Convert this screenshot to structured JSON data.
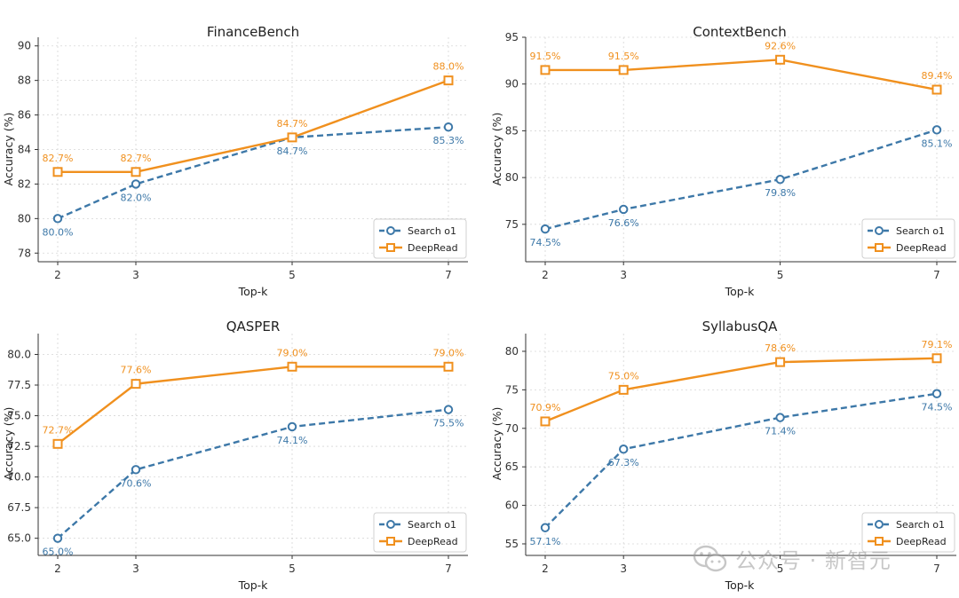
{
  "chart_data": [
    {
      "type": "line",
      "title": "FinanceBench",
      "xlabel": "Top-k",
      "ylabel": "Accuracy (%)",
      "x": [
        2,
        3,
        5,
        7
      ],
      "xticks": [
        "2",
        "3",
        "5",
        "7"
      ],
      "ylim": [
        77.5,
        90.5
      ],
      "yticks": [
        78,
        80,
        82,
        84,
        86,
        88,
        90
      ],
      "ytick_labels": [
        "78",
        "80",
        "82",
        "84",
        "86",
        "88",
        "90"
      ],
      "legend_position": "lower-right",
      "grid": true,
      "series": [
        {
          "name": "Search o1",
          "values": [
            80.0,
            82.0,
            84.7,
            85.3
          ],
          "labels": [
            "80.0%",
            "82.0%",
            "84.7%",
            "85.3%"
          ],
          "label_position": "below",
          "color": "#3d78a8",
          "style": "dashed",
          "marker": "circle"
        },
        {
          "name": "DeepRead",
          "values": [
            82.7,
            82.7,
            84.7,
            88.0
          ],
          "labels": [
            "82.7%",
            "82.7%",
            "84.7%",
            "88.0%"
          ],
          "label_position": "above",
          "color": "#f0901e",
          "style": "solid",
          "marker": "square"
        }
      ]
    },
    {
      "type": "line",
      "title": "ContextBench",
      "xlabel": "Top-k",
      "ylabel": "Accuracy (%)",
      "x": [
        2,
        3,
        5,
        7
      ],
      "xticks": [
        "2",
        "3",
        "5",
        "7"
      ],
      "ylim": [
        71.0,
        95.0
      ],
      "yticks": [
        75,
        80,
        85,
        90,
        95
      ],
      "ytick_labels": [
        "75",
        "80",
        "85",
        "90",
        "95"
      ],
      "legend_position": "lower-right",
      "grid": true,
      "series": [
        {
          "name": "Search o1",
          "values": [
            74.5,
            76.6,
            79.8,
            85.1
          ],
          "labels": [
            "74.5%",
            "76.6%",
            "79.8%",
            "85.1%"
          ],
          "label_position": "below",
          "color": "#3d78a8",
          "style": "dashed",
          "marker": "circle"
        },
        {
          "name": "DeepRead",
          "values": [
            91.5,
            91.5,
            92.6,
            89.4
          ],
          "labels": [
            "91.5%",
            "91.5%",
            "92.6%",
            "89.4%"
          ],
          "label_position": "above",
          "color": "#f0901e",
          "style": "solid",
          "marker": "square"
        }
      ]
    },
    {
      "type": "line",
      "title": "QASPER",
      "xlabel": "Top-k",
      "ylabel": "Accuracy (%)",
      "x": [
        2,
        3,
        5,
        7
      ],
      "xticks": [
        "2",
        "3",
        "5",
        "7"
      ],
      "ylim": [
        63.6,
        81.7
      ],
      "yticks": [
        65.0,
        67.5,
        70.0,
        72.5,
        75.0,
        77.5,
        80.0
      ],
      "ytick_labels": [
        "65.0",
        "67.5",
        "70.0",
        "72.5",
        "75.0",
        "77.5",
        "80.0"
      ],
      "legend_position": "lower-right",
      "grid": true,
      "series": [
        {
          "name": "Search o1",
          "values": [
            65.0,
            70.6,
            74.1,
            75.5
          ],
          "labels": [
            "65.0%",
            "70.6%",
            "74.1%",
            "75.5%"
          ],
          "label_position": "below",
          "color": "#3d78a8",
          "style": "dashed",
          "marker": "circle"
        },
        {
          "name": "DeepRead",
          "values": [
            72.7,
            77.6,
            79.0,
            79.0
          ],
          "labels": [
            "72.7%",
            "77.6%",
            "79.0%",
            "79.0%"
          ],
          "label_position": "above",
          "color": "#f0901e",
          "style": "solid",
          "marker": "square"
        }
      ]
    },
    {
      "type": "line",
      "title": "SyllabusQA",
      "xlabel": "Top-k",
      "ylabel": "Accuracy (%)",
      "x": [
        2,
        3,
        5,
        7
      ],
      "xticks": [
        "2",
        "3",
        "5",
        "7"
      ],
      "ylim": [
        53.5,
        82.3
      ],
      "yticks": [
        55,
        60,
        65,
        70,
        75,
        80
      ],
      "ytick_labels": [
        "55",
        "60",
        "65",
        "70",
        "75",
        "80"
      ],
      "legend_position": "lower-right",
      "grid": true,
      "series": [
        {
          "name": "Search o1",
          "values": [
            57.1,
            67.3,
            71.4,
            74.5
          ],
          "labels": [
            "57.1%",
            "67.3%",
            "71.4%",
            "74.5%"
          ],
          "label_position": "below",
          "color": "#3d78a8",
          "style": "dashed",
          "marker": "circle"
        },
        {
          "name": "DeepRead",
          "values": [
            70.9,
            75.0,
            78.6,
            79.1
          ],
          "labels": [
            "70.9%",
            "75.0%",
            "78.6%",
            "79.1%"
          ],
          "label_position": "above",
          "color": "#f0901e",
          "style": "solid",
          "marker": "square"
        }
      ]
    }
  ],
  "watermark": {
    "text": "公众号 · 新智元",
    "icon": "wechat-icon"
  }
}
